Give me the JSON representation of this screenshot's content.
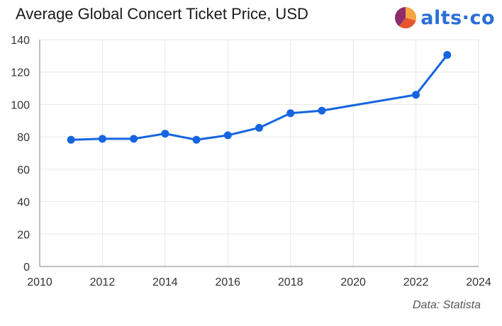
{
  "title": "Average Global Concert Ticket Price, USD",
  "brand": {
    "name": "alts·co",
    "logo_icon": "pie-logo-icon",
    "colors": [
      "#e4572e",
      "#f2a541",
      "#8e2c6b"
    ]
  },
  "source": "Data: Statista",
  "chart_data": {
    "type": "line",
    "title": "Average Global Concert Ticket Price, USD",
    "xlabel": "",
    "ylabel": "",
    "x": [
      2011,
      2012,
      2013,
      2014,
      2015,
      2016,
      2017,
      2018,
      2019,
      2022,
      2023
    ],
    "series": [
      {
        "values": [
          78.2,
          78.8,
          78.8,
          82.0,
          78.2,
          81.0,
          85.6,
          94.6,
          96.2,
          106.0,
          130.6
        ],
        "color": "#1565e0"
      }
    ],
    "xlim": [
      2010,
      2024
    ],
    "ylim": [
      0,
      140
    ],
    "xticks": [
      2010,
      2012,
      2014,
      2016,
      2018,
      2020,
      2022,
      2024
    ],
    "yticks": [
      0,
      20,
      40,
      60,
      80,
      100,
      120,
      140
    ],
    "grid": true,
    "legend": "none"
  }
}
